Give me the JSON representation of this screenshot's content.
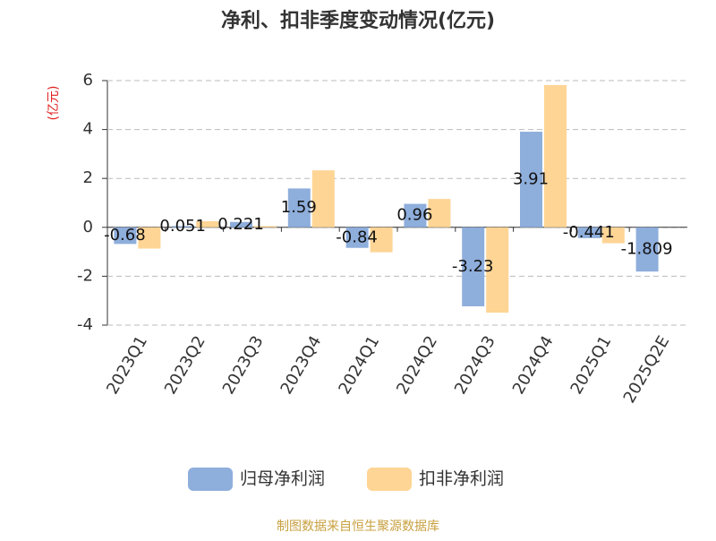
{
  "chart_data": {
    "type": "bar",
    "title": "净利、扣非季度变动情况(亿元)",
    "y_label": "(亿元)",
    "categories": [
      "2023Q1",
      "2023Q2",
      "2023Q3",
      "2023Q4",
      "2024Q1",
      "2024Q2",
      "2024Q3",
      "2024Q4",
      "2025Q1",
      "2025Q2E"
    ],
    "series": [
      {
        "name": "归母净利润",
        "color": "#8eaedc",
        "values": [
          -0.68,
          0.051,
          0.221,
          1.59,
          -0.84,
          0.96,
          -3.23,
          3.91,
          -0.441,
          -1.809
        ],
        "show_labels": true
      },
      {
        "name": "扣非净利润",
        "color": "#fed595",
        "values": [
          -0.87,
          0.25,
          0.05,
          2.33,
          -1.02,
          1.16,
          -3.49,
          5.82,
          -0.65,
          null
        ],
        "show_labels": false
      }
    ],
    "ylim": [
      -4,
      6
    ],
    "yticks": [
      -4,
      -2,
      0,
      2,
      4,
      6
    ],
    "grid": true,
    "legend": "bottom",
    "source": "制图数据来自恒生聚源数据库"
  }
}
